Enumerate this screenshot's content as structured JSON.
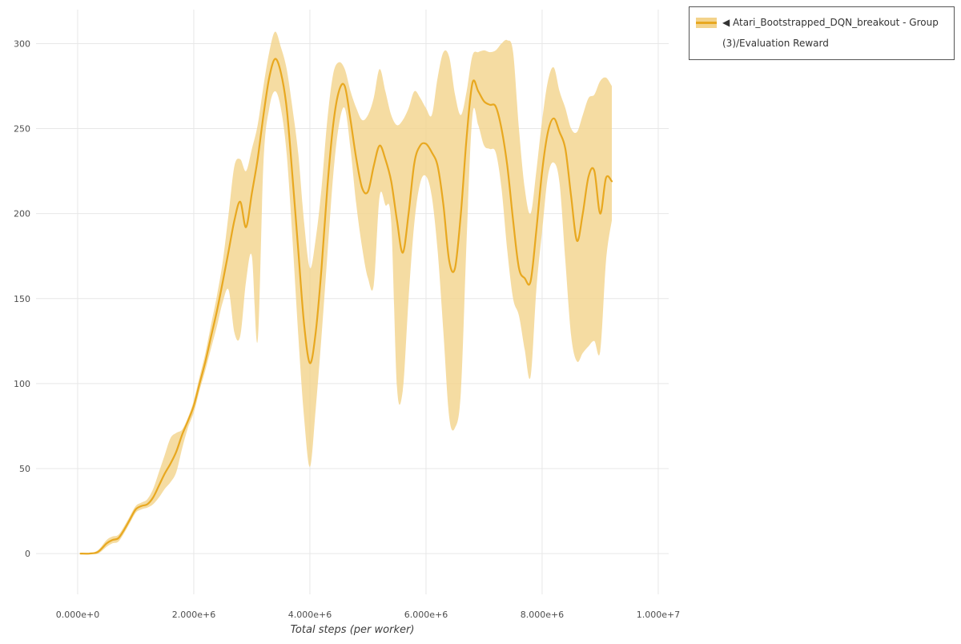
{
  "page": {
    "background": "#ffffff"
  },
  "chart_data": {
    "type": "line",
    "title": "",
    "xlabel": "Total steps (per worker)",
    "ylabel": "",
    "grid": true,
    "xlim": [
      -717000,
      10180000
    ],
    "ylim": [
      -24,
      320
    ],
    "x_ticks": {
      "values": [
        0,
        2000000,
        4000000,
        6000000,
        8000000,
        10000000
      ],
      "labels": [
        "0.000e+0",
        "2.000e+6",
        "4.000e+6",
        "6.000e+6",
        "8.000e+6",
        "1.000e+7"
      ]
    },
    "y_ticks": [
      0,
      50,
      100,
      150,
      200,
      250,
      300
    ],
    "colors": {
      "line": "#e8a820",
      "band": "#f3d38b",
      "grid": "#e7e7e7",
      "tick_text": "#4d4d4d",
      "axis_label_text": "#3c3c3c"
    },
    "legend": {
      "position": "top-right",
      "entries": [
        {
          "label": "◀ Atari_Bootstrapped_DQN_breakout - Group(3)/Evaluation Reward",
          "line_color": "#e8a820",
          "band_color": "#f3d38b"
        }
      ]
    },
    "series": [
      {
        "name": "Atari_Bootstrapped_DQN_breakout - Group(3)/Evaluation Reward",
        "x": [
          50000,
          200000,
          350000,
          500000,
          600000,
          700000,
          800000,
          900000,
          1000000,
          1100000,
          1200000,
          1300000,
          1400000,
          1500000,
          1600000,
          1700000,
          1800000,
          1900000,
          2000000,
          2100000,
          2200000,
          2300000,
          2400000,
          2500000,
          2600000,
          2700000,
          2800000,
          2900000,
          3000000,
          3100000,
          3200000,
          3300000,
          3400000,
          3500000,
          3600000,
          3700000,
          3800000,
          3900000,
          4000000,
          4100000,
          4200000,
          4300000,
          4400000,
          4500000,
          4600000,
          4700000,
          4800000,
          4900000,
          5000000,
          5100000,
          5200000,
          5300000,
          5400000,
          5500000,
          5600000,
          5700000,
          5800000,
          5900000,
          6000000,
          6100000,
          6200000,
          6300000,
          6400000,
          6500000,
          6600000,
          6700000,
          6800000,
          6900000,
          7000000,
          7100000,
          7200000,
          7300000,
          7400000,
          7500000,
          7600000,
          7700000,
          7800000,
          7900000,
          8000000,
          8100000,
          8200000,
          8300000,
          8400000,
          8500000,
          8600000,
          8700000,
          8800000,
          8900000,
          9000000,
          9100000,
          9200000
        ],
        "mean": [
          0,
          0,
          1,
          6,
          8,
          9,
          14,
          20,
          26,
          28,
          29,
          33,
          40,
          47,
          53,
          60,
          70,
          78,
          87,
          100,
          113,
          128,
          143,
          160,
          178,
          196,
          207,
          192,
          212,
          232,
          258,
          280,
          291,
          283,
          262,
          222,
          178,
          135,
          112,
          130,
          168,
          215,
          252,
          272,
          275,
          255,
          232,
          215,
          213,
          228,
          240,
          232,
          219,
          196,
          177,
          200,
          230,
          240,
          241,
          236,
          228,
          205,
          172,
          168,
          200,
          245,
          277,
          272,
          266,
          264,
          263,
          250,
          228,
          196,
          168,
          162,
          160,
          190,
          225,
          248,
          256,
          248,
          238,
          210,
          184,
          200,
          222,
          225,
          200,
          221,
          219
        ],
        "upper": [
          0,
          0,
          2,
          8,
          10,
          11,
          16,
          22,
          28,
          30,
          32,
          38,
          48,
          58,
          68,
          71,
          73,
          80,
          90,
          104,
          118,
          135,
          152,
          172,
          200,
          228,
          232,
          225,
          238,
          252,
          275,
          295,
          307,
          298,
          285,
          262,
          235,
          195,
          168,
          185,
          215,
          255,
          282,
          289,
          285,
          272,
          262,
          255,
          258,
          268,
          285,
          272,
          258,
          252,
          255,
          262,
          272,
          268,
          262,
          258,
          280,
          295,
          292,
          270,
          258,
          272,
          293,
          295,
          296,
          295,
          296,
          300,
          302,
          295,
          250,
          215,
          200,
          225,
          255,
          278,
          286,
          272,
          262,
          250,
          248,
          258,
          268,
          270,
          278,
          280,
          275
        ],
        "lower": [
          0,
          0,
          0,
          4,
          6,
          7,
          12,
          18,
          24,
          26,
          27,
          29,
          33,
          38,
          42,
          48,
          62,
          74,
          83,
          96,
          108,
          121,
          134,
          148,
          155,
          130,
          128,
          160,
          175,
          125,
          230,
          262,
          272,
          262,
          235,
          185,
          128,
          80,
          51,
          85,
          128,
          175,
          222,
          252,
          262,
          238,
          205,
          180,
          162,
          158,
          210,
          205,
          195,
          98,
          96,
          150,
          195,
          218,
          222,
          210,
          178,
          130,
          80,
          74,
          95,
          185,
          258,
          252,
          240,
          238,
          236,
          215,
          178,
          150,
          140,
          120,
          104,
          155,
          190,
          222,
          230,
          218,
          172,
          128,
          113,
          118,
          122,
          125,
          119,
          172,
          196
        ]
      }
    ]
  }
}
